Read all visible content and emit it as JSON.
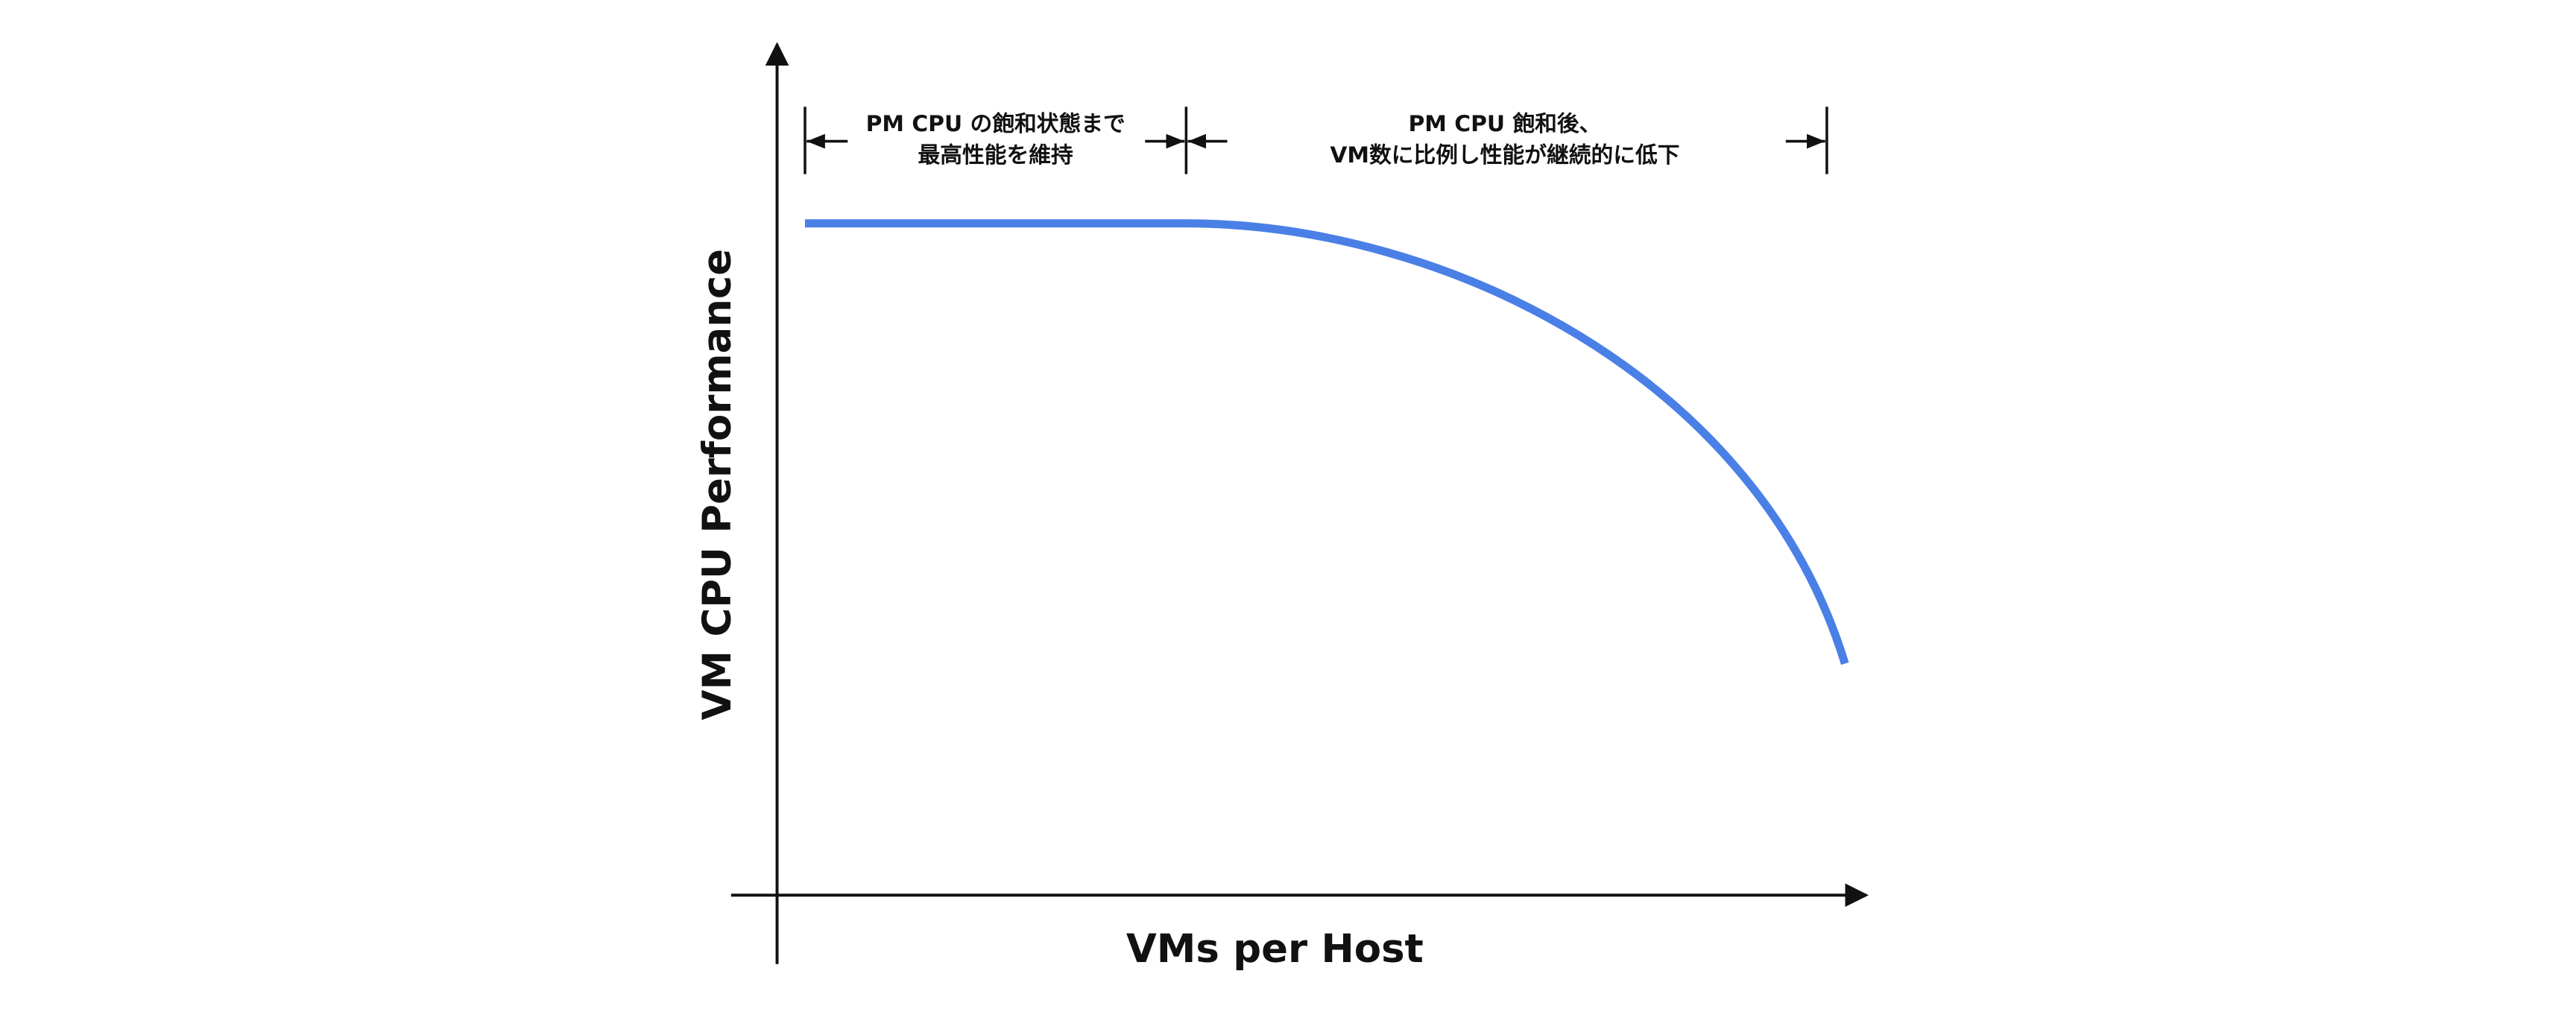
{
  "axes": {
    "y_label": "VM CPU Performance",
    "x_label": "VMs per Host"
  },
  "annotations": [
    {
      "lines": [
        "PM CPU の飽和状態まで",
        "最高性能を維持"
      ]
    },
    {
      "lines": [
        "PM CPU 飽和後、",
        "VM数に比例し性能が継続的に低下"
      ]
    }
  ]
}
